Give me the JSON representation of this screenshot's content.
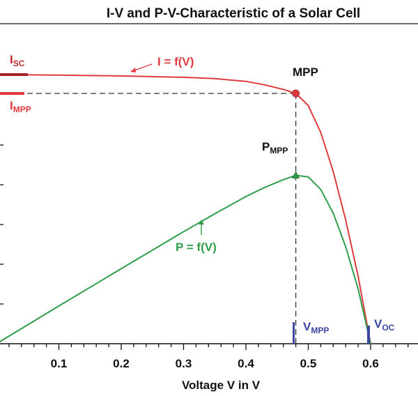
{
  "chart_data": {
    "type": "line",
    "title": "I-V and P-V-Characteristic of a Solar Cell",
    "xlabel": "Voltage V in V",
    "ylabel": "",
    "xlim": [
      0,
      0.67
    ],
    "x_ticks": [
      0.1,
      0.2,
      0.3,
      0.4,
      0.5,
      0.6
    ],
    "x_tick_labels": [
      "0.1",
      "0.2",
      "0.3",
      "0.4",
      "0.5",
      "0.6"
    ],
    "grid": false,
    "series": [
      {
        "name": "I = f(V)",
        "color": "#e03a3e",
        "x": [
          0.0,
          0.1,
          0.2,
          0.3,
          0.35,
          0.4,
          0.43,
          0.46,
          0.48,
          0.5,
          0.52,
          0.54,
          0.56,
          0.58,
          0.6
        ],
        "y": [
          1.0,
          0.998,
          0.995,
          0.99,
          0.985,
          0.975,
          0.962,
          0.945,
          0.93,
          0.885,
          0.785,
          0.64,
          0.46,
          0.25,
          0.0
        ]
      },
      {
        "name": "P = f(V)",
        "color": "#2e9e4a",
        "x": [
          0.0,
          0.1,
          0.2,
          0.3,
          0.35,
          0.4,
          0.43,
          0.46,
          0.48,
          0.5,
          0.52,
          0.54,
          0.56,
          0.58,
          0.6
        ],
        "y": [
          0.0,
          0.208,
          0.414,
          0.618,
          0.717,
          0.812,
          0.862,
          0.905,
          0.929,
          0.92,
          0.851,
          0.72,
          0.535,
          0.302,
          0.0
        ]
      }
    ],
    "mpp": {
      "v": 0.48,
      "i": 0.93,
      "p": 0.929
    },
    "voc": 0.6,
    "annotations": {
      "isc": {
        "main": "I",
        "sub": "SC"
      },
      "impp": {
        "main": "I",
        "sub": "MPP"
      },
      "mpp": "MPP",
      "pmpp": {
        "main": "P",
        "sub": "MPP"
      },
      "vmpp": {
        "main": "V",
        "sub": "MPP"
      },
      "voc": {
        "main": "V",
        "sub": "OC"
      }
    },
    "colors": {
      "current": "#e03a3e",
      "power": "#2e9e4a",
      "voltage_marker": "#3a46a0",
      "axis": "#111111"
    }
  }
}
